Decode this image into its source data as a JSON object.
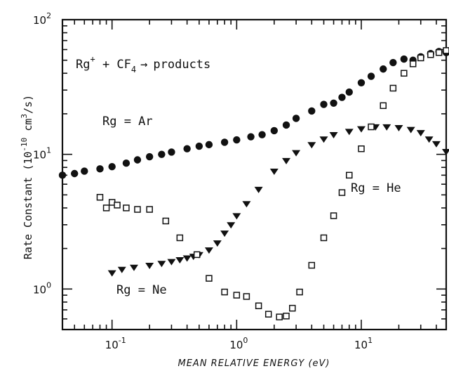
{
  "chart_data": {
    "type": "scatter",
    "title": "",
    "xlabel": "MEAN RELATIVE ENERGY (eV)",
    "ylabel": {
      "main": "Rate Constant (10",
      "exp1": "-10",
      "mid": " cm",
      "exp2": "3",
      "tail": "/s)"
    },
    "xscale": "log",
    "yscale": "log",
    "xlim": [
      0.04,
      48
    ],
    "ylim": [
      0.5,
      100
    ],
    "x_ticks": [
      {
        "base": "10",
        "exp": "-1",
        "value": 0.1
      },
      {
        "base": "10",
        "exp": "0",
        "value": 1
      },
      {
        "base": "10",
        "exp": "1",
        "value": 10
      }
    ],
    "y_ticks": [
      {
        "base": "10",
        "exp": "0",
        "value": 1
      },
      {
        "base": "10",
        "exp": "1",
        "value": 10
      },
      {
        "base": "10",
        "exp": "2",
        "value": 100
      }
    ],
    "reaction": {
      "pre": "Rg",
      "sup": "+",
      "mid": " + CF",
      "sub": "4",
      "arrow": "→",
      "post": "products"
    },
    "series": [
      {
        "name": "Rg = Ar",
        "marker": "filled-circle",
        "x": [
          0.04,
          0.05,
          0.06,
          0.08,
          0.1,
          0.13,
          0.16,
          0.2,
          0.25,
          0.3,
          0.4,
          0.5,
          0.6,
          0.8,
          1.0,
          1.3,
          1.6,
          2.0,
          2.5,
          3.0,
          4.0,
          5.0,
          6.0,
          7.0,
          8.0,
          10,
          12,
          15,
          18,
          22,
          26,
          30,
          36,
          42,
          48
        ],
        "y": [
          7.0,
          7.2,
          7.5,
          7.8,
          8.1,
          8.6,
          9.1,
          9.6,
          10.0,
          10.4,
          11.0,
          11.5,
          11.8,
          12.3,
          12.8,
          13.5,
          14.0,
          15.0,
          16.5,
          18.5,
          21.0,
          23.5,
          24.0,
          26.5,
          29.0,
          34,
          38,
          43,
          48,
          51,
          50,
          53,
          56,
          58,
          57
        ]
      },
      {
        "name": "Rg = Ne",
        "marker": "filled-triangle-down",
        "x": [
          0.1,
          0.12,
          0.15,
          0.2,
          0.25,
          0.3,
          0.35,
          0.4,
          0.45,
          0.5,
          0.6,
          0.7,
          0.8,
          0.9,
          1.0,
          1.2,
          1.5,
          2.0,
          2.5,
          3.0,
          4.0,
          5.0,
          6.0,
          8.0,
          10,
          13,
          16,
          20,
          25,
          30,
          35,
          40,
          48
        ],
        "y": [
          1.32,
          1.4,
          1.45,
          1.5,
          1.55,
          1.6,
          1.65,
          1.7,
          1.75,
          1.8,
          1.95,
          2.2,
          2.6,
          3.0,
          3.5,
          4.3,
          5.5,
          7.5,
          9.0,
          10.3,
          11.8,
          13.0,
          14.0,
          14.8,
          15.5,
          16.0,
          16.0,
          15.8,
          15.3,
          14.5,
          13.0,
          12.0,
          10.5
        ]
      },
      {
        "name": "Rg = He",
        "marker": "open-square",
        "x": [
          0.08,
          0.09,
          0.1,
          0.11,
          0.13,
          0.16,
          0.2,
          0.27,
          0.35,
          0.48,
          0.6,
          0.8,
          1.0,
          1.2,
          1.5,
          1.8,
          2.2,
          2.5,
          2.8,
          3.2,
          4.0,
          5.0,
          6.0,
          7.0,
          8.0,
          10,
          12,
          15,
          18,
          22,
          26,
          30,
          36,
          42,
          48
        ],
        "y": [
          4.8,
          4.0,
          4.4,
          4.2,
          4.0,
          3.9,
          3.9,
          3.2,
          2.4,
          1.8,
          1.2,
          0.95,
          0.9,
          0.88,
          0.75,
          0.65,
          0.62,
          0.63,
          0.72,
          0.95,
          1.5,
          2.4,
          3.5,
          5.2,
          7.0,
          11,
          16,
          23,
          31,
          40,
          47,
          52,
          55,
          57,
          59
        ]
      }
    ],
    "annotations": [
      {
        "text": "Rg = Ar",
        "series": 0
      },
      {
        "text": "Rg = Ne",
        "series": 1
      },
      {
        "text": "Rg = He",
        "series": 2
      }
    ],
    "grid": false,
    "legend": "none"
  }
}
